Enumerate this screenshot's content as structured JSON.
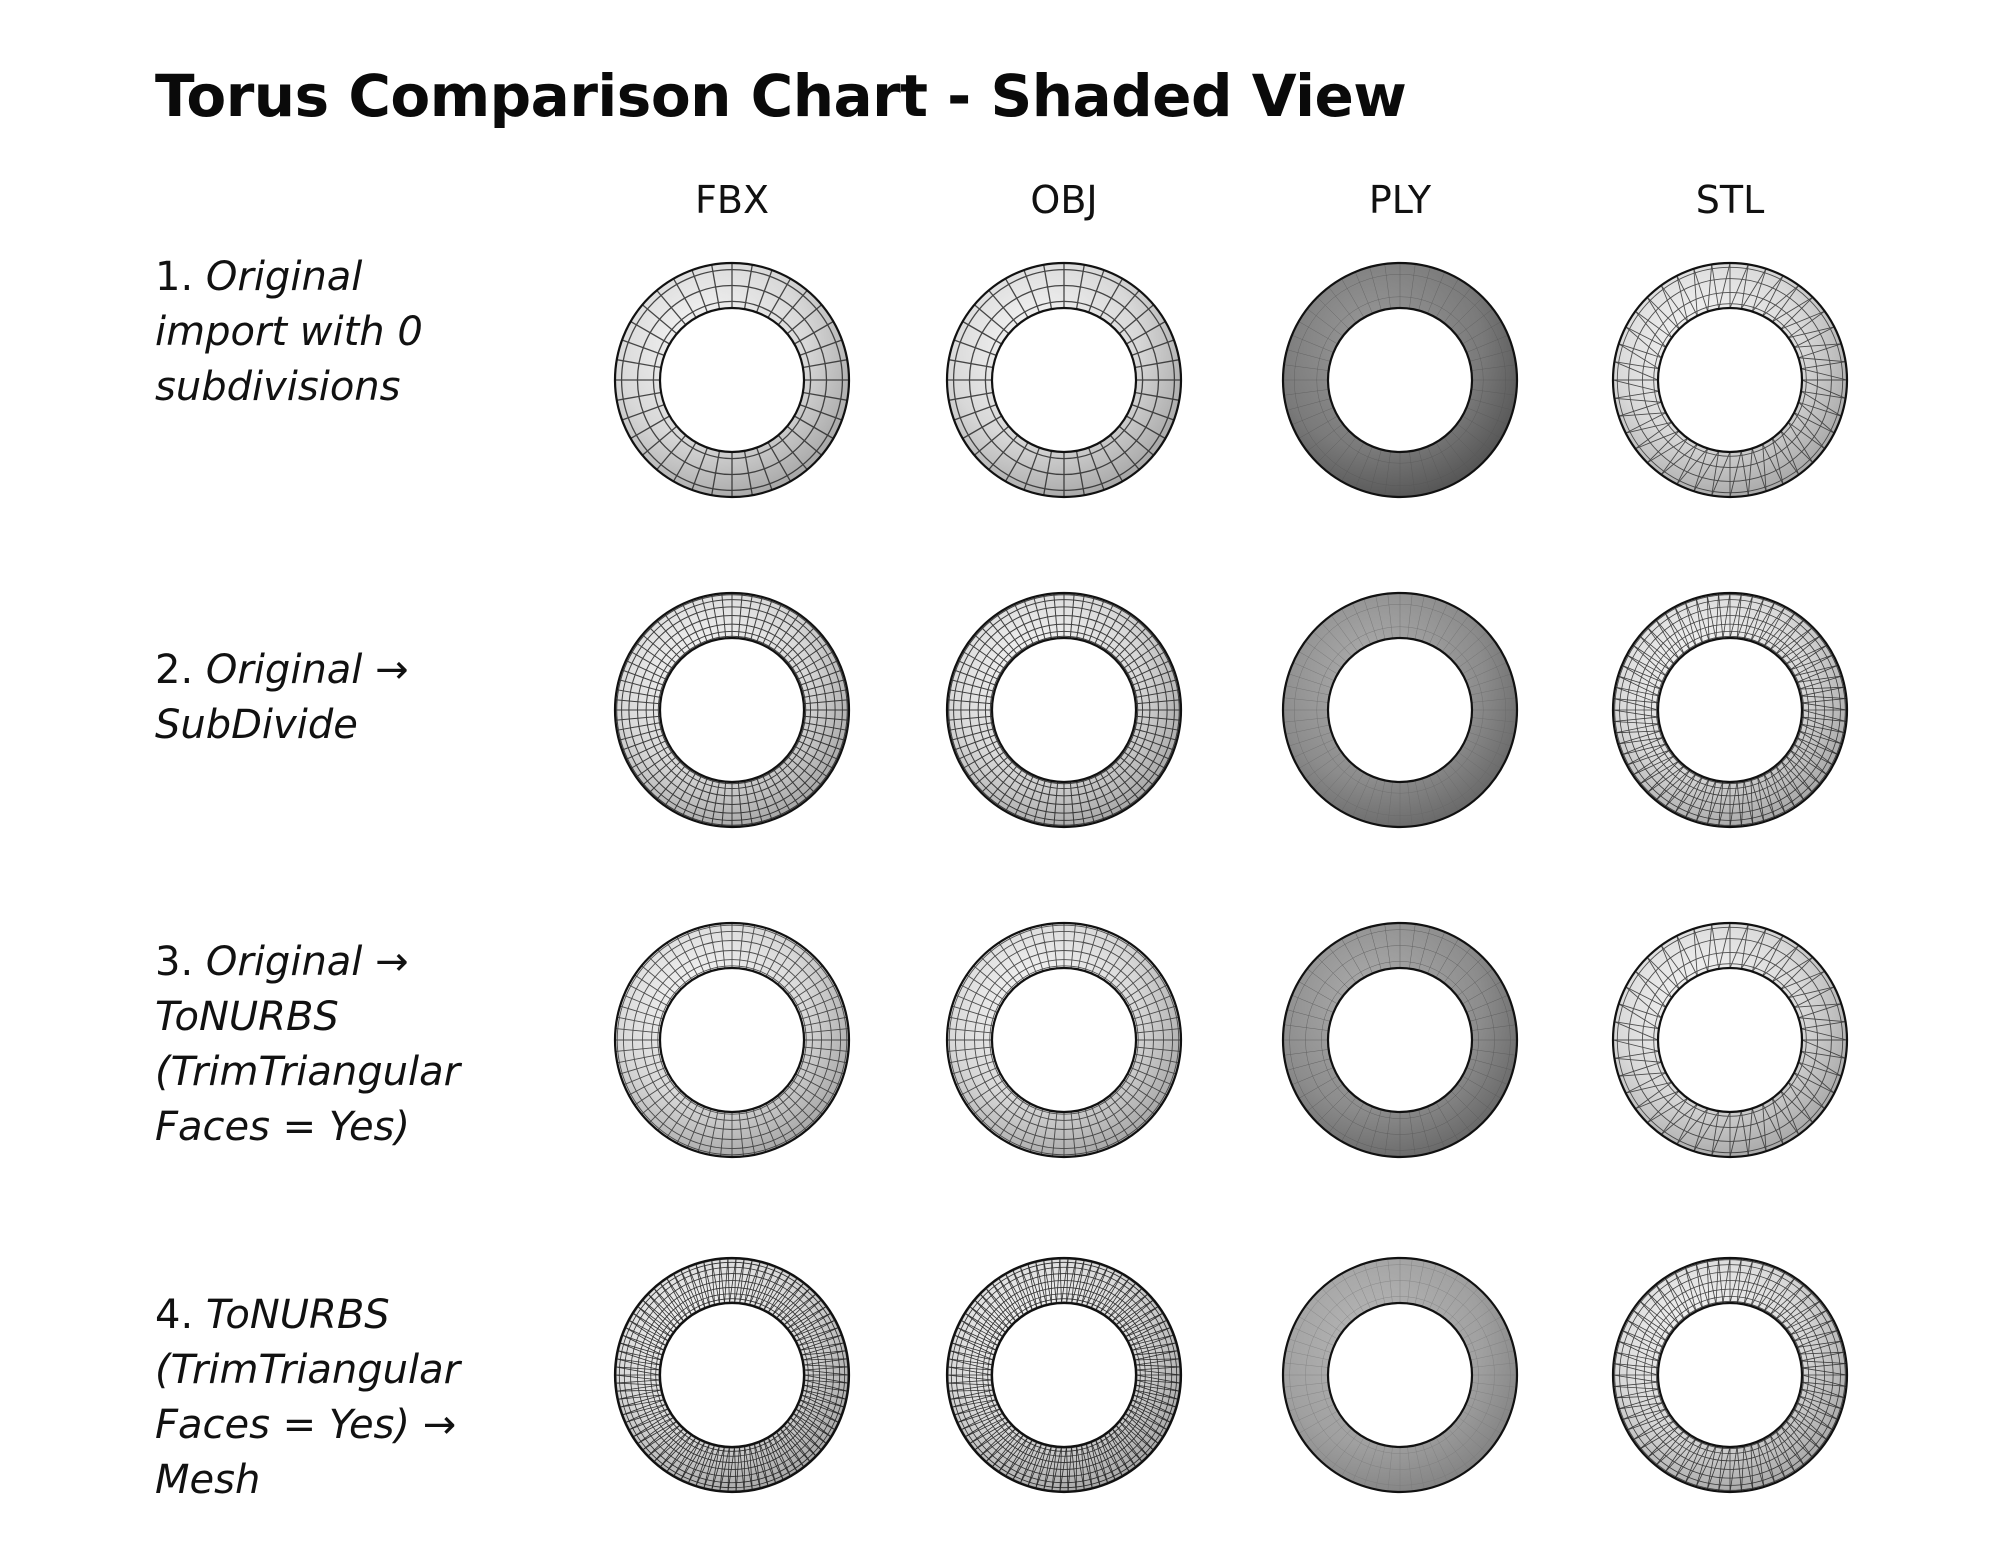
{
  "title": "Torus Comparison Chart - Shaded View",
  "columns": [
    "FBX",
    "OBJ",
    "PLY",
    "STL"
  ],
  "rows": [
    {
      "number": "1.",
      "label": "Original import with 0 subdivisions",
      "lines": [
        "Original",
        "import with 0",
        "subdivisions"
      ]
    },
    {
      "number": "2.",
      "label": "Original → SubDivide",
      "lines": [
        "Original →",
        "SubDivide"
      ]
    },
    {
      "number": "3.",
      "label": "Original → ToNURBS (TrimTriangular Faces = Yes)",
      "lines": [
        "Original →",
        "ToNURBS",
        "(TrimTriangular",
        "Faces = Yes)"
      ]
    },
    {
      "number": "4.",
      "label": "ToNURBS (TrimTriangular Faces = Yes) → Mesh",
      "lines": [
        "ToNURBS",
        "(TrimTriangular",
        "Faces = Yes) →",
        "Mesh"
      ]
    }
  ],
  "cells": [
    [
      {
        "col": "FBX",
        "style": "quad-coarse"
      },
      {
        "col": "OBJ",
        "style": "quad-coarse"
      },
      {
        "col": "PLY",
        "style": "shaded-dark"
      },
      {
        "col": "STL",
        "style": "tri-coarse"
      }
    ],
    [
      {
        "col": "FBX",
        "style": "quad-fine"
      },
      {
        "col": "OBJ",
        "style": "quad-fine"
      },
      {
        "col": "PLY",
        "style": "shaded-mid"
      },
      {
        "col": "STL",
        "style": "tri-fine"
      }
    ],
    [
      {
        "col": "FBX",
        "style": "quad-fine-light"
      },
      {
        "col": "OBJ",
        "style": "quad-fine-light"
      },
      {
        "col": "PLY",
        "style": "shaded-patchy"
      },
      {
        "col": "STL",
        "style": "tri-coarse"
      }
    ],
    [
      {
        "col": "FBX",
        "style": "tri-dense"
      },
      {
        "col": "OBJ",
        "style": "tri-dense"
      },
      {
        "col": "PLY",
        "style": "shaded-light"
      },
      {
        "col": "STL",
        "style": "tri-fine"
      }
    ]
  ],
  "colors": {
    "background": "#ffffff",
    "text": "#111111",
    "mesh_line": "#222222"
  }
}
